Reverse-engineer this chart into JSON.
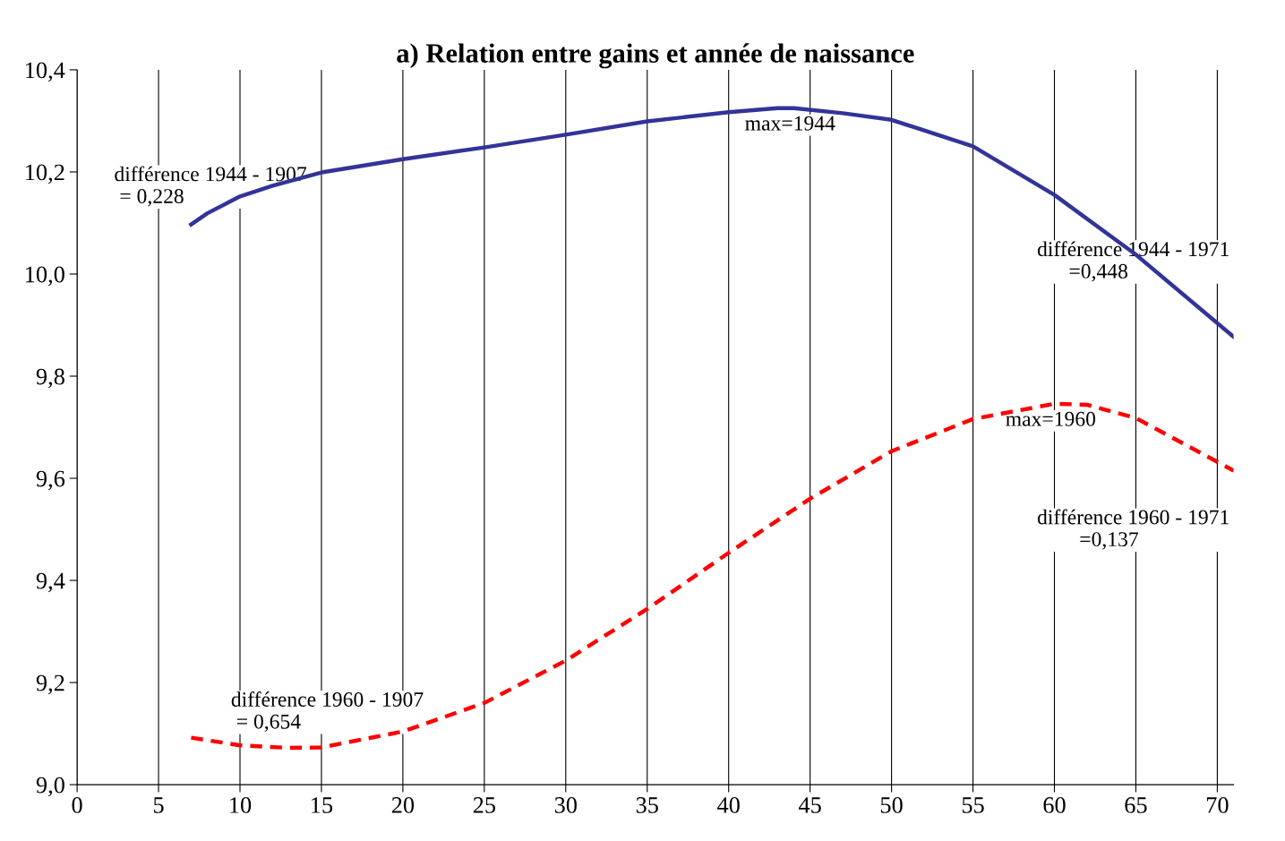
{
  "chart_data": {
    "type": "line",
    "title": "a) Relation entre gains et année de naissance",
    "x": [
      7,
      8,
      10,
      12,
      15,
      20,
      25,
      30,
      35,
      40,
      43,
      44,
      47,
      50,
      55,
      60,
      65,
      71
    ],
    "series": [
      {
        "color": "#333399",
        "line_style": "solid",
        "values": [
          10.097,
          10.119,
          10.152,
          10.173,
          10.199,
          10.225,
          10.248,
          10.273,
          10.299,
          10.317,
          10.325,
          10.325,
          10.315,
          10.302,
          10.25,
          10.155,
          10.038,
          9.877
        ]
      },
      {
        "color": "#ff0000",
        "line_style": "dashed",
        "x": [
          7,
          10,
          13,
          15,
          20,
          25,
          30,
          35,
          40,
          45,
          50,
          55,
          60,
          62,
          65,
          71
        ],
        "values": [
          9.092,
          9.077,
          9.072,
          9.073,
          9.104,
          9.16,
          9.243,
          9.344,
          9.454,
          9.56,
          9.653,
          9.716,
          9.746,
          9.744,
          9.718,
          9.615
        ]
      }
    ],
    "xlim": [
      0,
      71
    ],
    "xticks": [
      0,
      5,
      10,
      15,
      20,
      25,
      30,
      35,
      40,
      45,
      50,
      55,
      60,
      65,
      70
    ],
    "ylim": [
      9.0,
      10.4
    ],
    "yticks": [
      {
        "value": 9.0,
        "label": "9,0"
      },
      {
        "value": 9.2,
        "label": "9,2"
      },
      {
        "value": 9.4,
        "label": "9,4"
      },
      {
        "value": 9.6,
        "label": "9,6"
      },
      {
        "value": 9.8,
        "label": "9,8"
      },
      {
        "value": 10.0,
        "label": "10,0"
      },
      {
        "value": 10.2,
        "label": "10,2"
      },
      {
        "value": 10.4,
        "label": "10,4"
      }
    ],
    "grid": "x",
    "marker": "none",
    "annotations": [
      "différence 1944 - 1907\n = 0,228",
      {
        "text": "max=1944",
        "x": 44,
        "y": 10.325
      },
      "différence 1944 - 1971\n      =0,448",
      {
        "text": "max=1960",
        "x": 60,
        "y": 9.746
      },
      "différence 1960 - 1971\n        =0,137",
      "différence 1960 - 1907\n = 0,654"
    ]
  }
}
